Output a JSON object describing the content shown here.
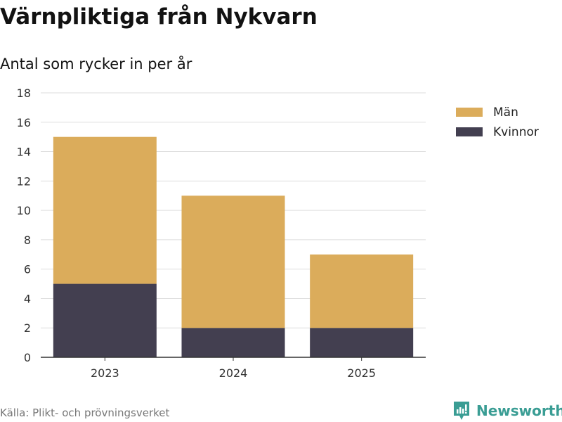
{
  "title": "Värnpliktiga från Nykvarn",
  "subtitle": "Antal som rycker in per år",
  "source": "Källa: Plikt- och prövningsverket",
  "logo_text": "Newsworthy",
  "chart_data": {
    "type": "bar",
    "stacked": true,
    "title": "Värnpliktiga från Nykvarn",
    "subtitle": "Antal som rycker in per år",
    "xlabel": "",
    "ylabel": "",
    "categories": [
      "2023",
      "2024",
      "2025"
    ],
    "series": [
      {
        "name": "Kvinnor",
        "color": "#433f50",
        "values": [
          5,
          2,
          2
        ]
      },
      {
        "name": "Män",
        "color": "#dbac5b",
        "values": [
          10,
          9,
          5
        ]
      }
    ],
    "legend_order": [
      "Män",
      "Kvinnor"
    ],
    "ylim": [
      0,
      18
    ],
    "yticks": [
      0,
      2,
      4,
      6,
      8,
      10,
      12,
      14,
      16,
      18
    ],
    "grid": true,
    "legend_position": "right"
  }
}
